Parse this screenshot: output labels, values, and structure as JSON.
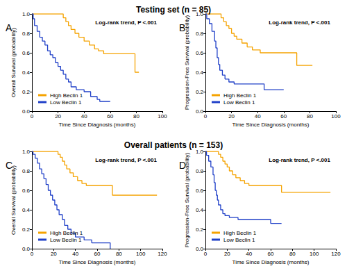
{
  "headings": [
    "Testing set (n = 85)",
    "Overall patients (n = 153)"
  ],
  "chart_data": [
    {
      "type": "step",
      "label": "A",
      "annotation": "Log-rank trend, P <.001",
      "xlabel": "Time Since Diagnosis (months)",
      "ylabel": "Overall Survival (probability)",
      "xlim": [
        0,
        100
      ],
      "xticks": [
        0,
        20,
        40,
        60,
        80,
        100
      ],
      "ylim": [
        0,
        1
      ],
      "yticks": [
        {
          "value": 0,
          "label": "0.0"
        },
        0.2,
        0.4,
        0.6,
        0.8,
        {
          "value": 1,
          "label": "1.0"
        }
      ],
      "grid": false,
      "legend": "lower left",
      "series": [
        {
          "name": "High Beclin 1",
          "color": "#f5a300",
          "x": [
            0,
            24,
            26,
            28,
            30,
            33,
            36,
            40,
            44,
            48,
            51,
            55,
            78,
            79,
            82
          ],
          "values": [
            1,
            0.96,
            0.92,
            0.88,
            0.84,
            0.8,
            0.76,
            0.72,
            0.68,
            0.64,
            0.62,
            0.59,
            0.59,
            0.4,
            0.4
          ]
        },
        {
          "name": "Low Beclin 1",
          "color": "#2040c8",
          "x": [
            0,
            1,
            2,
            4,
            6,
            8,
            10,
            12,
            14,
            16,
            18,
            20,
            22,
            24,
            26,
            28,
            30,
            34,
            40,
            45,
            50,
            52,
            60
          ],
          "values": [
            1,
            0.95,
            0.88,
            0.82,
            0.76,
            0.72,
            0.68,
            0.62,
            0.58,
            0.55,
            0.5,
            0.46,
            0.42,
            0.38,
            0.33,
            0.3,
            0.25,
            0.22,
            0.2,
            0.15,
            0.12,
            0.1,
            0.1
          ]
        }
      ]
    },
    {
      "type": "step",
      "label": "B",
      "annotation": "Log-rank trend, P <.001",
      "xlabel": "Time Since Diagnosis (months)",
      "ylabel": "Progression-Free Survival (probability)",
      "xlim": [
        0,
        100
      ],
      "xticks": [
        0,
        20,
        40,
        60,
        80,
        100
      ],
      "ylim": [
        0,
        1
      ],
      "yticks": [
        {
          "value": 0,
          "label": "0.0"
        },
        0.2,
        0.4,
        0.6,
        0.8,
        {
          "value": 1,
          "label": "1.0"
        }
      ],
      "grid": false,
      "legend": "lower left",
      "series": [
        {
          "name": "High Beclin 1",
          "color": "#f5a300",
          "x": [
            0,
            10,
            12,
            14,
            16,
            18,
            20,
            22,
            24,
            28,
            32,
            36,
            42,
            69,
            70,
            82
          ],
          "values": [
            1,
            1,
            0.96,
            0.92,
            0.88,
            0.85,
            0.8,
            0.77,
            0.74,
            0.7,
            0.66,
            0.63,
            0.6,
            0.6,
            0.47,
            0.47
          ]
        },
        {
          "name": "Low Beclin 1",
          "color": "#2040c8",
          "x": [
            0,
            1,
            3,
            5,
            7,
            8,
            9,
            10,
            11,
            13,
            15,
            18,
            22,
            42,
            45,
            60
          ],
          "values": [
            1,
            0.95,
            0.9,
            0.82,
            0.72,
            0.65,
            0.55,
            0.48,
            0.42,
            0.37,
            0.33,
            0.3,
            0.28,
            0.28,
            0.22,
            0.22
          ]
        }
      ]
    },
    {
      "type": "step",
      "label": "C",
      "annotation": "Log-rank trend, P <.001",
      "xlabel": "Time Since Diagnosis (months)",
      "ylabel": "Overall Survival (probability)",
      "xlim": [
        0,
        120
      ],
      "xticks": [
        0,
        20,
        40,
        60,
        80,
        100,
        120
      ],
      "ylim": [
        0,
        1
      ],
      "yticks": [
        {
          "value": 0,
          "label": "0.0"
        },
        0.2,
        0.4,
        0.6,
        0.8,
        {
          "value": 1,
          "label": "1.0"
        }
      ],
      "grid": false,
      "legend": "lower left",
      "series": [
        {
          "name": "High Beclin 1",
          "color": "#f5a300",
          "x": [
            0,
            22,
            24,
            26,
            28,
            30,
            32,
            35,
            38,
            42,
            46,
            50,
            73,
            74,
            115
          ],
          "values": [
            1,
            1,
            0.97,
            0.94,
            0.9,
            0.86,
            0.82,
            0.78,
            0.74,
            0.7,
            0.67,
            0.65,
            0.65,
            0.55,
            0.55
          ]
        },
        {
          "name": "Low Beclin 1",
          "color": "#2040c8",
          "x": [
            0,
            1,
            3,
            5,
            7,
            9,
            11,
            13,
            15,
            17,
            19,
            21,
            23,
            25,
            28,
            30,
            33,
            36,
            40,
            48,
            55,
            71,
            72
          ],
          "values": [
            1,
            0.97,
            0.93,
            0.88,
            0.82,
            0.77,
            0.72,
            0.66,
            0.6,
            0.55,
            0.5,
            0.45,
            0.4,
            0.35,
            0.3,
            0.24,
            0.2,
            0.16,
            0.12,
            0.09,
            0.06,
            0.06,
            0
          ]
        }
      ]
    },
    {
      "type": "step",
      "label": "D",
      "annotation": "Log-rank trend, P <.001",
      "xlabel": "Time Since Diagnosis (months)",
      "ylabel": "Progression-Free Survival (probability)",
      "xlim": [
        0,
        120
      ],
      "xticks": [
        0,
        20,
        40,
        60,
        80,
        100,
        120
      ],
      "ylim": [
        0,
        1
      ],
      "yticks": [
        {
          "value": 0,
          "label": "0.0"
        },
        0.2,
        0.4,
        0.6,
        0.8,
        {
          "value": 1,
          "label": "1.0"
        }
      ],
      "grid": false,
      "legend": "lower left",
      "series": [
        {
          "name": "High Beclin 1",
          "color": "#f5a300",
          "x": [
            0,
            10,
            12,
            14,
            16,
            18,
            20,
            22,
            25,
            28,
            32,
            36,
            40,
            68,
            70,
            115
          ],
          "values": [
            1,
            1,
            0.97,
            0.94,
            0.9,
            0.87,
            0.84,
            0.8,
            0.76,
            0.73,
            0.7,
            0.67,
            0.65,
            0.65,
            0.58,
            0.58
          ]
        },
        {
          "name": "Low Beclin 1",
          "color": "#2040c8",
          "x": [
            0,
            1,
            3,
            5,
            7,
            8,
            9,
            10,
            11,
            12,
            14,
            16,
            18,
            22,
            30,
            55,
            60,
            70
          ],
          "values": [
            1,
            0.96,
            0.9,
            0.84,
            0.76,
            0.68,
            0.6,
            0.55,
            0.5,
            0.45,
            0.4,
            0.36,
            0.34,
            0.32,
            0.3,
            0.3,
            0.26,
            0.26
          ]
        }
      ]
    }
  ]
}
